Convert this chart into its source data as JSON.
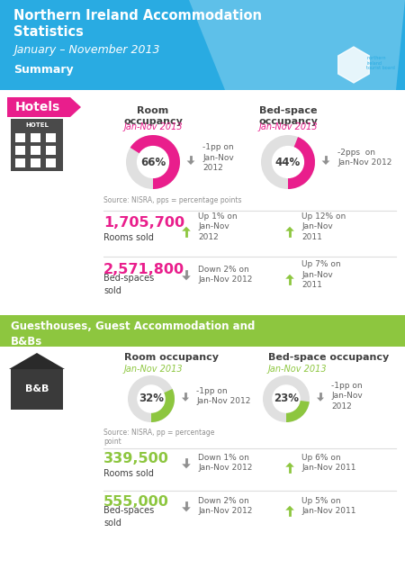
{
  "title_line1": "Northern Ireland Accommodation",
  "title_line2": "Statistics",
  "subtitle": "January – November 2013",
  "summary_label": "Summary",
  "header_bg": "#29ABE2",
  "hotels_label": "Hotels",
  "hotels_label_bg": "#E91E8C",
  "hotels_room_occ_pct": 66,
  "hotels_room_occ_label": "Room\noccupancy",
  "hotels_room_occ_sub": "Jan-Nov 2013",
  "hotels_room_occ_change": "-1pp on\nJan-Nov\n2012",
  "hotels_room_occ_arrow": "down",
  "hotels_bed_occ_pct": 44,
  "hotels_bed_occ_label": "Bed-space\noccupancy",
  "hotels_bed_occ_sub": "Jan-Nov 2013",
  "hotels_bed_occ_change": "-2pps  on\nJan-Nov 2012",
  "hotels_bed_occ_arrow": "down",
  "hotels_donut_color": "#E91E8C",
  "hotels_source": "Source: NISRA, pps = percentage points",
  "hotels_rooms_sold": "1,705,700",
  "hotels_rooms_sold_label": "Rooms sold",
  "hotels_rooms_sold_change": "Up 1% on\nJan-Nov\n2012",
  "hotels_rooms_sold_arrow": "up",
  "hotels_rooms_sold_change2": "Up 12% on\nJan-Nov\n2011",
  "hotels_rooms_sold_arrow2": "up",
  "hotels_bed_sold": "2,571,800",
  "hotels_bed_sold_label": "Bed-spaces\nsold",
  "hotels_bed_sold_change": "Down 2% on\nJan-Nov 2012",
  "hotels_bed_sold_arrow": "down",
  "hotels_bed_sold_change2": "Up 7% on\nJan-Nov\n2011",
  "hotels_bed_sold_arrow2": "up",
  "hotels_number_color": "#E91E8C",
  "bnb_section_label": "Guesthouses, Guest Accommodation and\nB&Bs",
  "bnb_section_bg": "#8DC63F",
  "bnb_room_occ_pct": 32,
  "bnb_room_occ_label": "Room occupancy",
  "bnb_room_occ_sub": "Jan-Nov 2013",
  "bnb_room_occ_change": "-1pp on\nJan-Nov 2012",
  "bnb_room_occ_arrow": "down",
  "bnb_bed_occ_pct": 23,
  "bnb_bed_occ_label": "Bed-space occupancy",
  "bnb_bed_occ_sub": "Jan-Nov 2013",
  "bnb_bed_occ_change": "-1pp on\nJan-Nov\n2012",
  "bnb_bed_occ_arrow": "down",
  "bnb_donut_color": "#8DC63F",
  "bnb_source": "Source: NISRA, pp = percentage\npoint",
  "bnb_rooms_sold": "339,500",
  "bnb_rooms_sold_label": "Rooms sold",
  "bnb_rooms_sold_change": "Down 1% on\nJan-Nov 2012",
  "bnb_rooms_sold_arrow": "down",
  "bnb_rooms_sold_change2": "Up 6% on\nJan-Nov 2011",
  "bnb_rooms_sold_arrow2": "up",
  "bnb_bed_sold": "555,000",
  "bnb_bed_sold_label": "Bed-spaces\nsold",
  "bnb_bed_sold_change": "Down 2% on\nJan-Nov 2012",
  "bnb_bed_sold_arrow": "down",
  "bnb_bed_sold_change2": "Up 5% on\nJan-Nov 2011",
  "bnb_bed_sold_arrow2": "up",
  "bnb_number_color": "#8DC63F",
  "arrow_up_color": "#8DC63F",
  "arrow_down_color": "#909090",
  "bg_color": "#FFFFFF",
  "text_color": "#404040"
}
